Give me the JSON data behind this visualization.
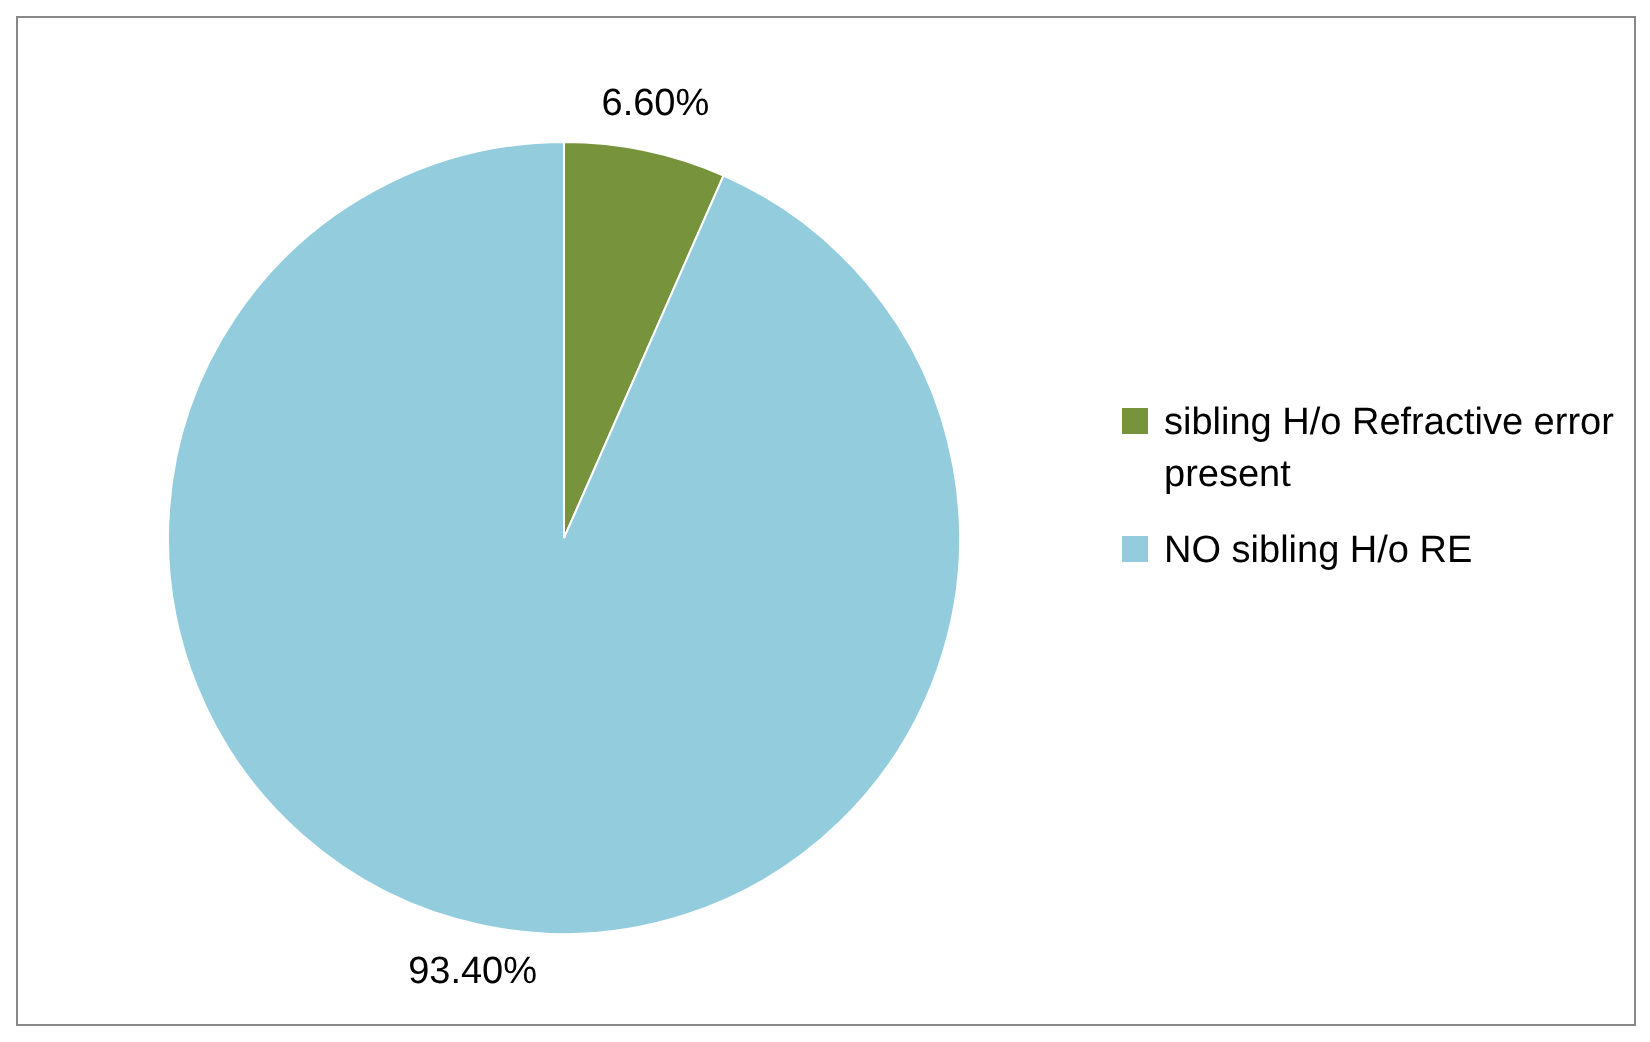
{
  "chart_data": {
    "type": "pie",
    "categories": [
      "sibling H/o Refractive error present",
      "NO sibling H/o RE"
    ],
    "values": [
      6.6,
      93.4
    ],
    "colors": [
      "#77933c",
      "#93cddd"
    ],
    "value_labels": [
      "6.60%",
      "93.40%"
    ],
    "legend": "right"
  }
}
